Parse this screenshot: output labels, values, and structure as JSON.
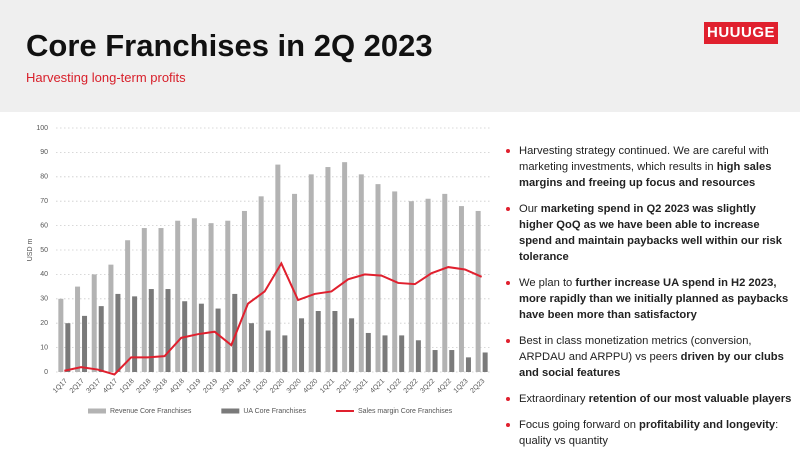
{
  "header": {
    "title": "Core Franchises in 2Q 2023",
    "subtitle": "Harvesting long-term profits",
    "logo": "HUUUGE"
  },
  "chart_data": {
    "type": "bar",
    "y_label": "USD m",
    "categories": [
      "1Q17",
      "2Q17",
      "3Q17",
      "4Q17",
      "1Q18",
      "2Q18",
      "3Q18",
      "4Q18",
      "1Q19",
      "2Q19",
      "3Q19",
      "4Q19",
      "1Q20",
      "2Q20",
      "3Q20",
      "4Q20",
      "1Q21",
      "2Q21",
      "3Q21",
      "4Q21",
      "1Q22",
      "2Q22",
      "3Q22",
      "4Q22",
      "1Q23",
      "2Q23"
    ],
    "series": [
      {
        "name": "Revenue Core Franchises",
        "type": "bar",
        "color": "#b3b3b3",
        "values": [
          30,
          35,
          40,
          44,
          54,
          59,
          59,
          62,
          63,
          61,
          62,
          66,
          72,
          85,
          73,
          81,
          84,
          86,
          81,
          77,
          74,
          70,
          71,
          73,
          68,
          66
        ]
      },
      {
        "name": "UA Core Franchises",
        "type": "bar",
        "color": "#7a7a7a",
        "values": [
          20,
          23,
          27,
          32,
          31,
          34,
          34,
          29,
          28,
          26,
          32,
          20,
          17,
          15,
          22,
          25,
          25,
          22,
          16,
          15,
          15,
          13,
          9,
          9,
          6,
          8
        ]
      },
      {
        "name": "Sales margin Core Franchises",
        "type": "line",
        "color": "#e0202e",
        "values": [
          0.5,
          2,
          1,
          -1,
          6,
          6,
          6.5,
          14,
          15.5,
          16.5,
          11,
          28,
          33,
          44.5,
          29.5,
          32,
          33,
          38,
          40,
          39.5,
          36.5,
          36,
          40.5,
          43,
          42,
          39
        ]
      }
    ],
    "ylim": [
      0,
      100
    ],
    "yticks": [
      0,
      10,
      20,
      30,
      40,
      50,
      60,
      70,
      80,
      90,
      100
    ],
    "grid": true
  },
  "bullets": [
    [
      {
        "text": "Harvesting strategy continued. We are careful with marketing investments, which results in ",
        "bold": false
      },
      {
        "text": "high sales margins and freeing up focus and resources",
        "bold": true
      }
    ],
    [
      {
        "text": "Our ",
        "bold": false
      },
      {
        "text": "marketing spend in Q2 2023 was slightly higher QoQ as we have been able to increase spend and maintain paybacks well within our risk tolerance",
        "bold": true
      }
    ],
    [
      {
        "text": "We plan to ",
        "bold": false
      },
      {
        "text": "further increase UA spend in H2 2023, more rapidly than we initially planned as paybacks have been more than satisfactory",
        "bold": true
      }
    ],
    [
      {
        "text": "Best in class monetization metrics (conversion, ARPDAU and ARPPU) vs peers ",
        "bold": false
      },
      {
        "text": "driven by our clubs and social features",
        "bold": true
      }
    ],
    [
      {
        "text": "Extraordinary ",
        "bold": false
      },
      {
        "text": "retention of our most valuable players",
        "bold": true
      }
    ],
    [
      {
        "text": "Focus going forward on ",
        "bold": false
      },
      {
        "text": "profitability and longevity",
        "bold": true
      },
      {
        "text": ": quality vs quantity",
        "bold": false
      }
    ]
  ]
}
